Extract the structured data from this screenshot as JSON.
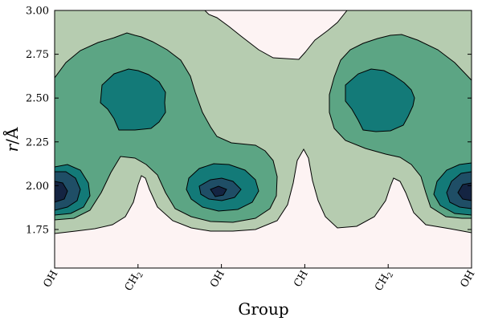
{
  "chart_data": {
    "type": "contour",
    "xlabel": "Group",
    "ylabel_symbol": "r",
    "ylabel_unit": "/Å",
    "ylim": [
      1.53,
      3.0
    ],
    "x_categories": [
      "OH",
      "CH2",
      "OH",
      "CH",
      "CH2",
      "OH"
    ],
    "x_tick_labels": [
      {
        "main": "OH",
        "sub": ""
      },
      {
        "main": "CH",
        "sub": "2"
      },
      {
        "main": "OH",
        "sub": ""
      },
      {
        "main": "CH",
        "sub": ""
      },
      {
        "main": "CH",
        "sub": "2"
      },
      {
        "main": "OH",
        "sub": ""
      }
    ],
    "y_ticks": [
      1.75,
      2.0,
      2.25,
      2.5,
      2.75,
      3.0
    ],
    "y_tick_labels": [
      "1.75",
      "2.00",
      "2.25",
      "2.50",
      "2.75",
      "3.00"
    ],
    "levels": [
      {
        "name": "level-0",
        "color": "#fdf3f3"
      },
      {
        "name": "level-1",
        "color": "#b6ccb0"
      },
      {
        "name": "level-2",
        "color": "#5ca584"
      },
      {
        "name": "level-3",
        "color": "#137a78"
      },
      {
        "name": "level-4",
        "color": "#1f4e66"
      },
      {
        "name": "level-5",
        "color": "#142442"
      }
    ],
    "peaks": [
      {
        "group_index": 0,
        "r": 1.94,
        "max_level": 5
      },
      {
        "group_index": 1,
        "r": 2.47,
        "max_level": 3
      },
      {
        "group_index": 2,
        "r": 1.96,
        "max_level": 5
      },
      {
        "group_index": 4,
        "r": 2.47,
        "max_level": 3
      },
      {
        "group_index": 5,
        "r": 1.94,
        "max_level": 5
      }
    ]
  }
}
